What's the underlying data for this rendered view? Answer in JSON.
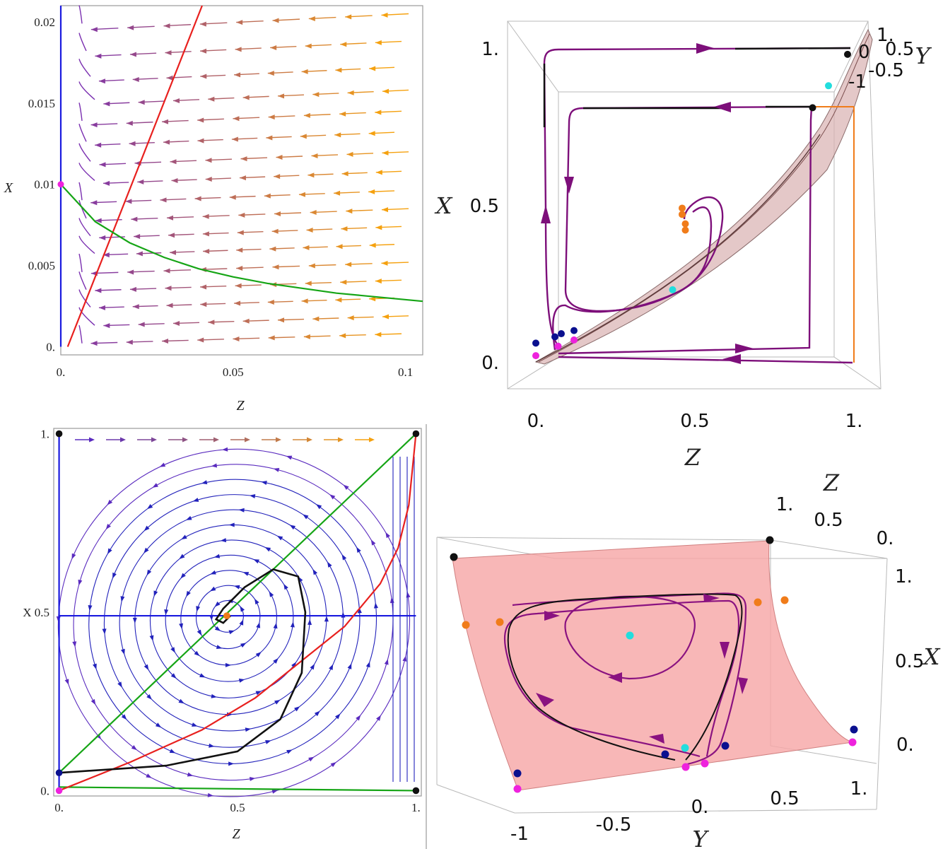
{
  "colors": {
    "blue": "#1a1adf",
    "red": "#e8201e",
    "green": "#16a516",
    "black": "#111111",
    "magenta": "#ee22dd",
    "orange": "#f07c1a",
    "cyan": "#22dddd",
    "navy": "#0a108f",
    "purple": "#7d0f7a",
    "surface": "#f6a7a7"
  },
  "chart_data": [
    {
      "type": "line",
      "xlabel": "Z",
      "ylabel": "X",
      "xlim": [
        0,
        0.105
      ],
      "ylim": [
        -0.0005,
        0.021
      ],
      "x_ticks": [
        "0.",
        "0.05",
        "0.1"
      ],
      "y_ticks": [
        "0.",
        "0.005",
        "0.01",
        "0.015",
        "0.02"
      ],
      "x_tick_values": [
        0,
        0.05,
        0.1
      ],
      "y_tick_values": [
        0,
        0.005,
        0.01,
        0.015,
        0.02
      ],
      "series": [
        {
          "color": "blue",
          "points": [
            [
              0,
              0
            ],
            [
              0,
              0.021
            ]
          ]
        },
        {
          "color": "red",
          "points": [
            [
              0.002,
              0
            ],
            [
              0.041,
              0.021
            ]
          ]
        },
        {
          "color": "green",
          "points": [
            [
              0,
              0.01
            ],
            [
              0.01,
              0.0077
            ],
            [
              0.02,
              0.0064
            ],
            [
              0.03,
              0.0055
            ],
            [
              0.04,
              0.0048
            ],
            [
              0.05,
              0.0043
            ],
            [
              0.06,
              0.0039
            ],
            [
              0.07,
              0.0036
            ],
            [
              0.08,
              0.0033
            ],
            [
              0.09,
              0.0031
            ],
            [
              0.105,
              0.0028
            ]
          ]
        }
      ],
      "points": [
        {
          "color": "magenta",
          "x": 0,
          "y": 0.01
        }
      ]
    },
    {
      "type": "line",
      "xlabel": "Z",
      "ylabel": "X",
      "xlim": [
        -0.015,
        1.015
      ],
      "ylim": [
        -0.015,
        1.015
      ],
      "x_ticks": [
        "0.",
        "0.5",
        "1."
      ],
      "y_ticks": [
        "0.",
        "X 0.5",
        "1."
      ],
      "x_tick_values": [
        0,
        0.5,
        1
      ],
      "y_tick_values": [
        0,
        0.5,
        1
      ],
      "series": [
        {
          "color": "blue",
          "points": [
            [
              0,
              0
            ],
            [
              0,
              1
            ]
          ]
        },
        {
          "color": "blue",
          "points": [
            [
              0,
              0.49
            ],
            [
              1,
              0.49
            ]
          ]
        },
        {
          "color": "green",
          "points": [
            [
              0,
              0.05
            ],
            [
              1,
              1
            ]
          ]
        },
        {
          "color": "green",
          "points": [
            [
              0,
              0.01
            ],
            [
              1,
              0
            ]
          ]
        },
        {
          "color": "red",
          "points": [
            [
              0,
              0
            ],
            [
              0.2,
              0.08
            ],
            [
              0.4,
              0.17
            ],
            [
              0.55,
              0.26
            ],
            [
              0.7,
              0.38
            ],
            [
              0.8,
              0.46
            ],
            [
              0.9,
              0.58
            ],
            [
              0.95,
              0.68
            ],
            [
              0.98,
              0.8
            ],
            [
              1,
              1
            ]
          ]
        },
        {
          "color": "black",
          "points": [
            [
              0,
              0.05
            ],
            [
              0.3,
              0.07
            ],
            [
              0.5,
              0.11
            ],
            [
              0.62,
              0.2
            ],
            [
              0.68,
              0.33
            ],
            [
              0.69,
              0.5
            ],
            [
              0.67,
              0.6
            ],
            [
              0.6,
              0.62
            ],
            [
              0.52,
              0.57
            ],
            [
              0.46,
              0.51
            ],
            [
              0.44,
              0.48
            ],
            [
              0.46,
              0.47
            ],
            [
              0.48,
              0.49
            ]
          ]
        }
      ],
      "points": [
        {
          "color": "black",
          "x": 0,
          "y": 1
        },
        {
          "color": "black",
          "x": 1,
          "y": 1
        },
        {
          "color": "black",
          "x": 1,
          "y": 0
        },
        {
          "color": "magenta",
          "x": 0,
          "y": 0
        },
        {
          "color": "navy",
          "x": 0,
          "y": 0.05
        },
        {
          "color": "orange",
          "x": 0.47,
          "y": 0.49
        }
      ]
    },
    {
      "type": "scatter",
      "xlabel": "Z",
      "ylabel": "X",
      "zlabel": "Y",
      "x_ticks": [
        "0.",
        "0.5",
        "1."
      ],
      "y_ticks": [
        "0.",
        "0.5",
        "1."
      ],
      "z_ticks": [
        "1.",
        "0.5",
        "0",
        "-0.5",
        "-1"
      ],
      "x_tick_values": [
        0,
        0.5,
        1
      ],
      "y_tick_values": [
        0,
        0.5,
        1
      ],
      "points": [
        {
          "color": "black",
          "x": 0.98,
          "y": 0.98
        },
        {
          "color": "black",
          "x": 0.87,
          "y": 0.81
        },
        {
          "color": "cyan",
          "x": 0.92,
          "y": 0.88
        },
        {
          "color": "cyan",
          "x": 0.43,
          "y": 0.23
        },
        {
          "color": "cyan",
          "x": 0.07,
          "y": 0.05
        },
        {
          "color": "orange",
          "x": 0.46,
          "y": 0.49
        },
        {
          "color": "orange",
          "x": 0.46,
          "y": 0.47
        },
        {
          "color": "orange",
          "x": 0.47,
          "y": 0.44
        },
        {
          "color": "orange",
          "x": 0.47,
          "y": 0.42
        },
        {
          "color": "magenta",
          "x": 0,
          "y": 0.02
        },
        {
          "color": "magenta",
          "x": 0.07,
          "y": 0.05
        },
        {
          "color": "magenta",
          "x": 0.12,
          "y": 0.07
        },
        {
          "color": "navy",
          "x": 0,
          "y": 0.06
        },
        {
          "color": "navy",
          "x": 0.06,
          "y": 0.08
        },
        {
          "color": "navy",
          "x": 0.08,
          "y": 0.09
        },
        {
          "color": "navy",
          "x": 0.12,
          "y": 0.1
        }
      ]
    },
    {
      "type": "scatter",
      "xlabel": "Y",
      "ylabel": "X",
      "zlabel": "Z",
      "x_ticks": [
        "-1",
        "-0.5",
        "0.",
        "0.5",
        "1."
      ],
      "y_ticks": [
        "0.",
        "0.5",
        "1."
      ],
      "z_ticks": [
        "1.",
        "0.5",
        "0."
      ],
      "x_tick_values": [
        -1,
        -0.5,
        0,
        0.5,
        1
      ],
      "y_tick_values": [
        0,
        0.5,
        1
      ],
      "points": [
        {
          "color": "black",
          "x": -1,
          "y": 1
        },
        {
          "color": "black",
          "x": 0.6,
          "y": 1
        },
        {
          "color": "cyan",
          "x": -0.3,
          "y": 0.65
        },
        {
          "color": "cyan",
          "x": 0,
          "y": 0.1
        },
        {
          "color": "orange",
          "x": -1,
          "y": 0.6
        },
        {
          "color": "orange",
          "x": -0.7,
          "y": 0.6
        },
        {
          "color": "orange",
          "x": 0.6,
          "y": 0.75
        },
        {
          "color": "orange",
          "x": 0.7,
          "y": 0.75
        },
        {
          "color": "magenta",
          "x": -1,
          "y": 0
        },
        {
          "color": "magenta",
          "x": -0.05,
          "y": 0.02
        },
        {
          "color": "magenta",
          "x": 0.05,
          "y": 0.03
        },
        {
          "color": "magenta",
          "x": 1,
          "y": 0.05
        },
        {
          "color": "navy",
          "x": -1,
          "y": 0.05
        },
        {
          "color": "navy",
          "x": -0.1,
          "y": 0.06
        },
        {
          "color": "navy",
          "x": 0.1,
          "y": 0.07
        },
        {
          "color": "navy",
          "x": 1,
          "y": 0.1
        }
      ]
    }
  ]
}
